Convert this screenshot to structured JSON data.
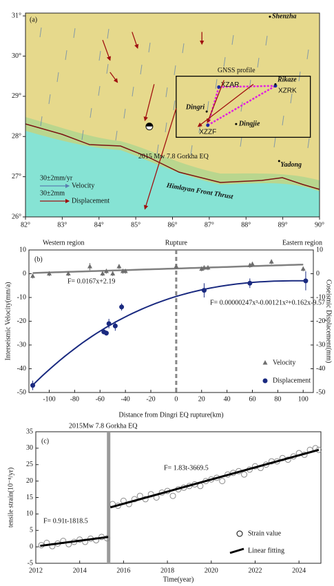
{
  "chart_data": [
    {
      "type": "map",
      "panel_label": "(a)",
      "xlim": [
        82,
        90
      ],
      "ylim": [
        26,
        31.07
      ],
      "xticks": [
        {
          "value": 82,
          "label": "82°"
        },
        {
          "value": 83,
          "label": "83°"
        },
        {
          "value": 84,
          "label": "84°"
        },
        {
          "value": 85,
          "label": "85°"
        },
        {
          "value": 86,
          "label": "86°"
        },
        {
          "value": 87,
          "label": "87°"
        },
        {
          "value": 88,
          "label": "88°"
        },
        {
          "value": 89,
          "label": "89°"
        },
        {
          "value": 90,
          "label": "90°"
        }
      ],
      "yticks": [
        {
          "value": 26,
          "label": "26°"
        },
        {
          "value": 27,
          "label": "27°"
        },
        {
          "value": 28,
          "label": "28°"
        },
        {
          "value": 29,
          "label": "29°"
        },
        {
          "value": 30,
          "label": "30°"
        },
        {
          "value": 31,
          "label": "31°"
        }
      ],
      "places": [
        {
          "name": "Shenzha",
          "lon": 88.65,
          "lat": 30.98
        },
        {
          "name": "Rikaze",
          "lon": 88.8,
          "lat": 29.3
        },
        {
          "name": "Dingri",
          "lon": 86.93,
          "lat": 28.62
        },
        {
          "name": "Dingjie",
          "lon": 87.73,
          "lat": 28.31
        },
        {
          "name": "Yadong",
          "lon": 88.9,
          "lat": 27.39
        }
      ],
      "stations": [
        {
          "name": "XZAR",
          "lon": 87.26,
          "lat": 29.23
        },
        {
          "name": "XZRK",
          "lon": 88.8,
          "lat": 29.26
        },
        {
          "name": "XZZF",
          "lon": 86.96,
          "lat": 28.28
        }
      ],
      "profile": {
        "label": "GNSS profile",
        "lon": [
          86.1,
          89.75
        ],
        "lat": [
          27.98,
          29.5
        ]
      },
      "epicenter": {
        "label": "2015 Mw 7.8 Gorkha EQ",
        "lon": 85.37,
        "lat": 28.25
      },
      "fault_label": "Himlayan Front Thrust",
      "displacement_arrows": [
        {
          "lon": [
            86.1,
            85.25
          ],
          "lat": [
            28.7,
            26.2
          ]
        },
        {
          "lon": [
            85.5,
            85.25
          ],
          "lat": [
            29.3,
            28.4
          ]
        },
        {
          "lon": [
            84.1,
            84.3
          ],
          "lat": [
            30.4,
            29.9
          ]
        },
        {
          "lon": [
            84.9,
            85.05
          ],
          "lat": [
            30.6,
            30.2
          ]
        },
        {
          "lon": [
            86.8,
            86.8
          ],
          "lat": [
            30.6,
            30.3
          ]
        },
        {
          "lon": [
            84.3,
            84.5
          ],
          "lat": [
            29.6,
            29.35
          ]
        },
        {
          "lon": [
            88.2,
            86.7
          ],
          "lat": [
            29.3,
            28.25
          ]
        },
        {
          "lon": [
            87.4,
            86.95
          ],
          "lat": [
            29.4,
            28.35
          ]
        }
      ],
      "legend": {
        "velocity_scale": "30±2mm/yr",
        "velocity": "Velocity",
        "displacement_scale": "30±2mm",
        "displacement": "Displacement"
      }
    },
    {
      "type": "scatter",
      "panel_label": "(b)",
      "region_labels": [
        "Western region",
        "Rupture",
        "Eastern region"
      ],
      "reference_x": 0,
      "xlabel": "Distance from Dingri EQ rupture(km)",
      "ylabel": "Interseismic Velocity(mm/a)",
      "y2label": "Coseismic Displacement(mm)",
      "xlim": [
        -116,
        108
      ],
      "xticks": [
        -100,
        -80,
        -60,
        -40,
        -20,
        0,
        20,
        40,
        60,
        80,
        100
      ],
      "ylim": [
        -50,
        10
      ],
      "yticks": [
        -50,
        -40,
        -30,
        -20,
        -10,
        0,
        10
      ],
      "y2lim": [
        -50,
        10
      ],
      "y2ticks": [
        -50,
        -40,
        -30,
        -20,
        -10,
        0,
        10
      ],
      "series": [
        {
          "name": "Velocity",
          "color": "#6e6e6e",
          "marker": "triangle",
          "x": [
            -113,
            -100,
            -85,
            -68,
            -58,
            -55,
            -50,
            -45,
            -42,
            -40,
            0,
            20,
            22,
            25,
            58,
            60,
            75,
            100
          ],
          "values": [
            -1,
            0,
            0,
            3,
            0,
            1,
            0,
            3,
            1,
            1,
            3,
            2,
            2.5,
            2.5,
            3.5,
            4,
            5,
            2
          ],
          "errors": [
            1,
            1,
            1,
            1.5,
            1,
            1,
            1,
            1,
            1,
            1,
            1,
            1,
            1,
            1,
            1,
            1,
            1,
            1
          ]
        },
        {
          "name": "Displacement",
          "color": "#1a2a80",
          "marker": "circle",
          "axis": "y2",
          "x": [
            -113,
            -57,
            -55,
            -53,
            -48,
            -43,
            22,
            58,
            102
          ],
          "values": [
            -47,
            -24.5,
            -25,
            -21,
            -22,
            -14,
            -7,
            -4,
            -3
          ],
          "errors": [
            2,
            1,
            1,
            2,
            2,
            1.5,
            3,
            2,
            4
          ]
        }
      ],
      "fits": [
        {
          "label": "F= 0.0167x+2.19",
          "coefficients": [
            2.19,
            0.0167
          ],
          "color": "#808080"
        },
        {
          "label": "F= 0.00000247x³-0.00121x²+0.162x-9.57",
          "coefficients": [
            -9.57,
            0.162,
            -0.00121,
            2.47e-06
          ],
          "color": "#1a2a80",
          "axis": "y2"
        }
      ]
    },
    {
      "type": "scatter",
      "panel_label": "(c)",
      "event": {
        "label": "2015Mw 7.8 Gorkha EQ",
        "x": 2015.32
      },
      "xlabel": "Time(year)",
      "ylabel": "tensile strain(10⁻⁸/yr)",
      "xlim": [
        2012,
        2025
      ],
      "xticks": [
        2012,
        2014,
        2016,
        2018,
        2020,
        2022,
        2024
      ],
      "ylim": [
        -5,
        35
      ],
      "yticks": [
        -5,
        0,
        5,
        10,
        15,
        20,
        25,
        30,
        35
      ],
      "series": [
        {
          "name": "Strain value",
          "color": "#8a8a8a",
          "x": [
            2012.25,
            2012.5,
            2012.75,
            2013,
            2013.25,
            2013.5,
            2013.75,
            2014,
            2014.25,
            2014.5,
            2014.75,
            2015,
            2015.25,
            2015.5,
            2015.75,
            2016,
            2016.25,
            2016.5,
            2016.75,
            2017,
            2017.25,
            2017.5,
            2017.75,
            2018,
            2018.25,
            2018.5,
            2018.75,
            2019,
            2019.25,
            2019.5,
            2019.75,
            2020,
            2020.25,
            2020.5,
            2020.75,
            2021,
            2021.25,
            2021.5,
            2021.75,
            2022,
            2022.25,
            2022.5,
            2022.75,
            2023,
            2023.25,
            2023.5,
            2023.75,
            2024,
            2024.25,
            2024.5,
            2024.75,
            2024.9
          ],
          "values": [
            0.5,
            1.2,
            0.2,
            1.0,
            1.8,
            0.8,
            1.5,
            2.2,
            1.5,
            2.5,
            2.0,
            3.0,
            2.6,
            13,
            12.5,
            14,
            13,
            14.5,
            15.5,
            14.5,
            16,
            15,
            16.5,
            17,
            15.5,
            17.5,
            18,
            18.5,
            19,
            18.5,
            20,
            20.5,
            21,
            20,
            22,
            22.5,
            23,
            22,
            23.5,
            24.5,
            24,
            25,
            26,
            26,
            27,
            26.5,
            27.5,
            28.5,
            28,
            29.5,
            30,
            29.5
          ]
        }
      ],
      "fit_legend": "Linear fitting",
      "fits": [
        {
          "label": "F= 0.91t-1818.5",
          "x": [
            2012.2,
            2015.3
          ],
          "y": [
            0.3,
            3.0
          ]
        },
        {
          "label": "F= 1.83t-3669.5",
          "x": [
            2015.4,
            2024.9
          ],
          "y": [
            12,
            29.5
          ]
        }
      ]
    }
  ]
}
